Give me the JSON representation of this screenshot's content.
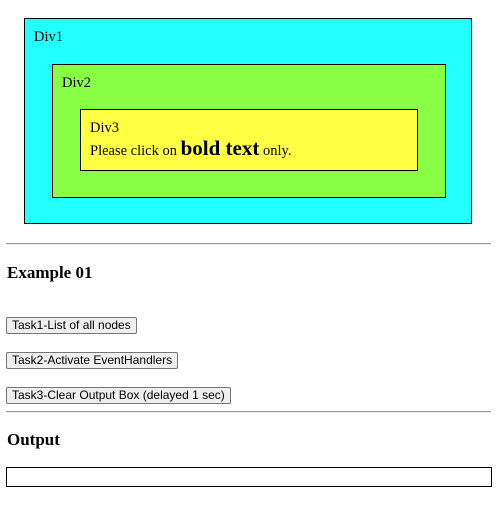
{
  "demo": {
    "div1_label": "Div1",
    "div2_label": "Div2",
    "div3_label": "Div3",
    "instruction_prefix": "Please click on ",
    "instruction_bold": "bold text",
    "instruction_suffix": " only."
  },
  "example": {
    "heading": "Example 01"
  },
  "tasks": [
    {
      "label": "Task1-List of all nodes"
    },
    {
      "label": "Task2-Activate EventHandlers"
    },
    {
      "label": "Task3-Clear Output Box (delayed 1 sec)"
    }
  ],
  "output": {
    "heading": "Output",
    "content": ""
  },
  "colors": {
    "div1": "#22ffff",
    "div2": "#88ff44",
    "div3": "#ffff44"
  }
}
